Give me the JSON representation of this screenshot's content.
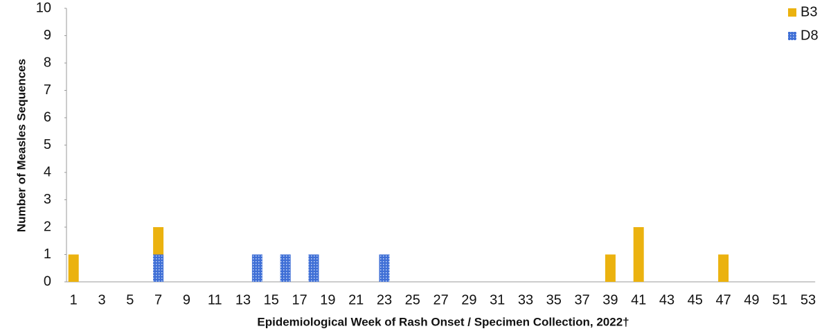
{
  "chart_data": {
    "type": "stacked_bar",
    "x_label": "Epidemiological Week of Rash Onset / Specimen Collection, 2022†",
    "y_label": "Number of Measles Sequences",
    "categories": [
      "1",
      null,
      "3",
      null,
      "5",
      null,
      "7",
      null,
      "9",
      null,
      "11",
      null,
      "13",
      null,
      "15",
      null,
      "17",
      null,
      "19",
      null,
      "21",
      null,
      "23",
      null,
      "25",
      null,
      "27",
      null,
      "29",
      null,
      "31",
      null,
      "33",
      null,
      "35",
      null,
      "37",
      null,
      "39",
      null,
      "41",
      null,
      "43",
      null,
      "45",
      null,
      "47",
      null,
      "49",
      null,
      "51",
      null,
      "53"
    ],
    "series": [
      {
        "name": "D8",
        "color": "#3f6fd6",
        "pattern": "dotted",
        "values": [
          0,
          0,
          0,
          0,
          0,
          0,
          1,
          0,
          0,
          0,
          0,
          0,
          0,
          1,
          0,
          1,
          0,
          1,
          0,
          0,
          0,
          0,
          1,
          0,
          0,
          0,
          0,
          0,
          0,
          0,
          0,
          0,
          0,
          0,
          0,
          0,
          0,
          0,
          0,
          0,
          0,
          0,
          0,
          0,
          0,
          0,
          0,
          0,
          0,
          0,
          0,
          0,
          0
        ]
      },
      {
        "name": "B3",
        "color": "#ebb20f",
        "values": [
          1,
          0,
          0,
          0,
          0,
          0,
          1,
          0,
          0,
          0,
          0,
          0,
          0,
          0,
          0,
          0,
          0,
          0,
          0,
          0,
          0,
          0,
          0,
          0,
          0,
          0,
          0,
          0,
          0,
          0,
          0,
          0,
          0,
          0,
          0,
          0,
          0,
          0,
          1,
          0,
          2,
          0,
          0,
          0,
          0,
          0,
          1,
          0,
          0,
          0,
          0,
          0,
          0
        ]
      }
    ],
    "ylim": [
      0,
      10
    ],
    "yticks": [
      0,
      1,
      2,
      3,
      4,
      5,
      6,
      7,
      8,
      9,
      10
    ],
    "legend": "top-right"
  }
}
